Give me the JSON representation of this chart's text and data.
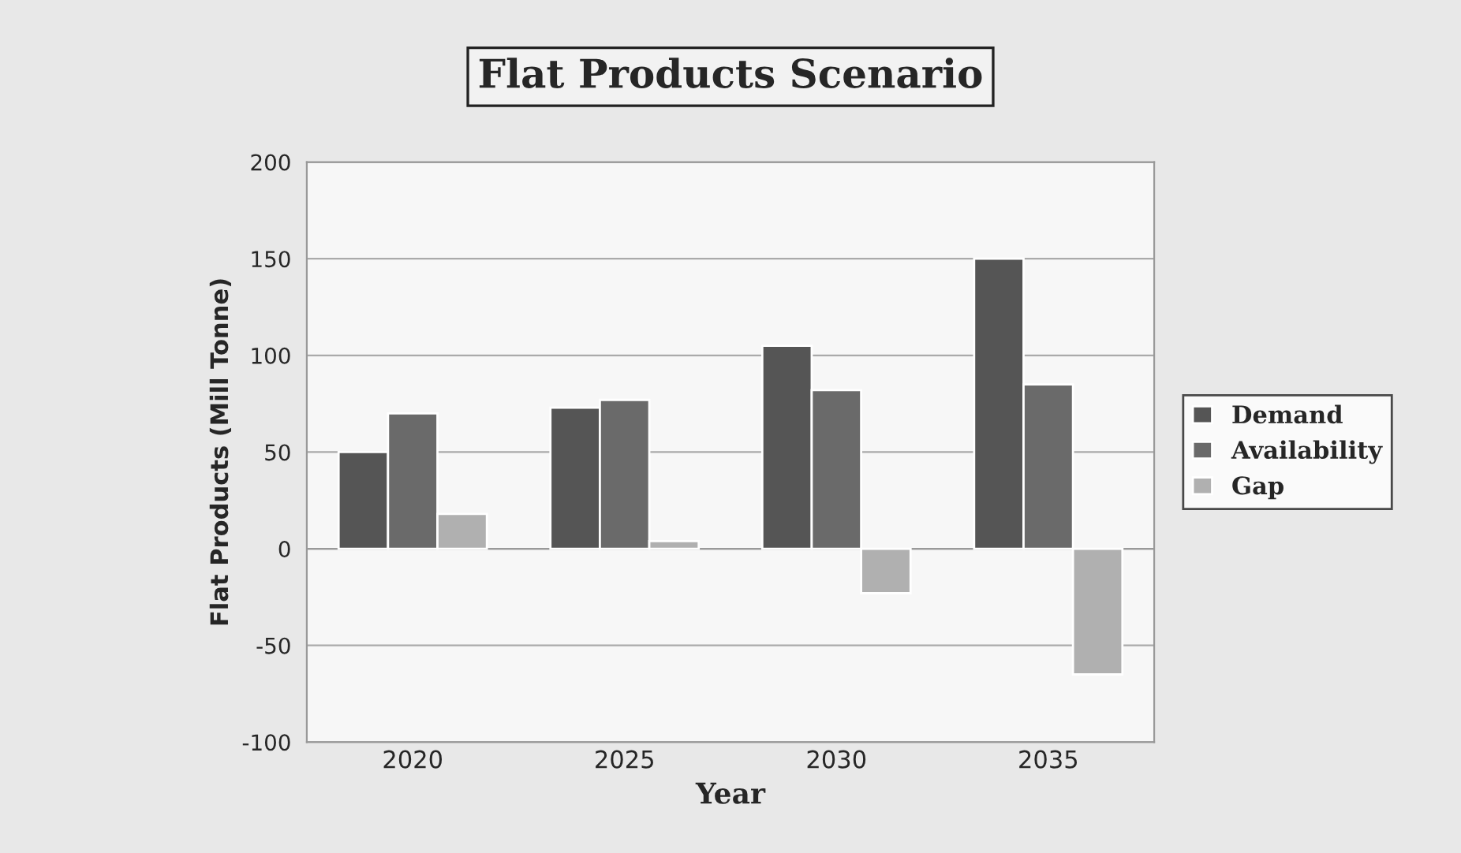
{
  "chart_data": {
    "type": "bar",
    "title": "Flat Products Scenario",
    "xlabel": "Year",
    "ylabel": "Flat Products (Mill Tonne)",
    "categories": [
      "2020",
      "2025",
      "2030",
      "2035"
    ],
    "series": [
      {
        "name": "Demand",
        "color": "#555555",
        "values": [
          50,
          73,
          105,
          150
        ]
      },
      {
        "name": "Availability",
        "color": "#6a6a6a",
        "values": [
          70,
          77,
          82,
          85
        ]
      },
      {
        "name": "Gap",
        "color": "#b0b0b0",
        "values": [
          18,
          4,
          -23,
          -65
        ]
      }
    ],
    "ylim": [
      -100,
      200
    ],
    "yticks": [
      -100,
      -50,
      0,
      50,
      100,
      150,
      200
    ],
    "grid": "y",
    "legend": "right"
  }
}
